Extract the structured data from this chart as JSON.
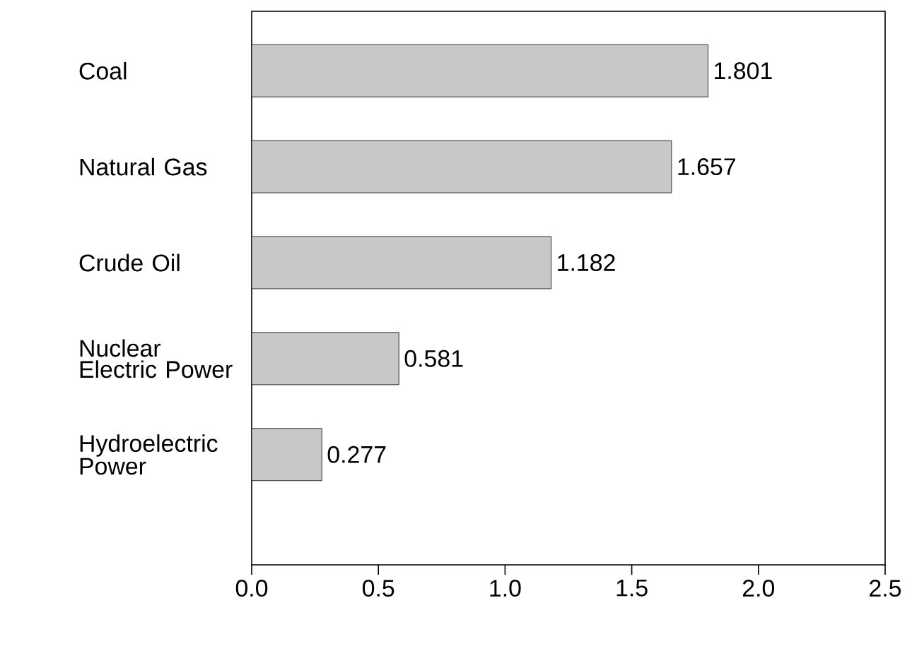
{
  "chart_data": {
    "type": "bar",
    "orientation": "horizontal",
    "categories": [
      "Coal",
      "Natural Gas",
      "Crude Oil",
      "Nuclear Electric Power",
      "Hydroelectric Power"
    ],
    "values": [
      1.801,
      1.657,
      1.182,
      0.581,
      0.277
    ],
    "color": "#c8c8c8",
    "data_labels": true,
    "xlim": [
      0,
      2.5
    ],
    "xticks": [
      {
        "value": 0,
        "label": "0.0"
      },
      {
        "value": 0.5,
        "label": "0.5"
      },
      {
        "value": 1,
        "label": "1.0"
      },
      {
        "value": 1.5,
        "label": "1.5"
      },
      {
        "value": 2,
        "label": "2.0"
      },
      {
        "value": 2.5,
        "label": "2.5"
      }
    ],
    "grid": false
  }
}
